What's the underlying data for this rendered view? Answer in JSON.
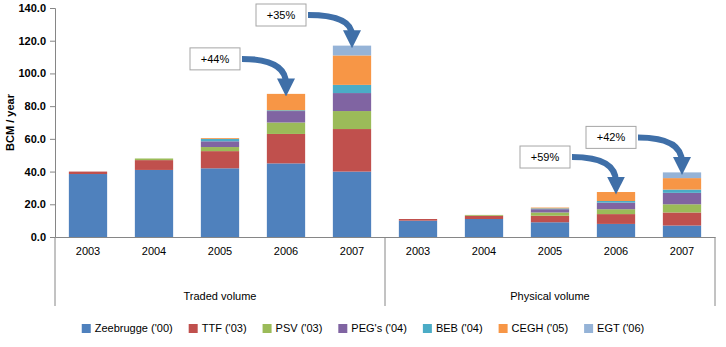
{
  "chart_data": {
    "type": "bar",
    "stacked": true,
    "grid": false,
    "legend": "bottom",
    "y_label": "BCM / year",
    "ylim": [
      0,
      140
    ],
    "yticks": [
      {
        "value": 0,
        "label": "0.0"
      },
      {
        "value": 20,
        "label": "20.0"
      },
      {
        "value": 40,
        "label": "40.0"
      },
      {
        "value": 60,
        "label": "60.0"
      },
      {
        "value": 80,
        "label": "80.0"
      },
      {
        "value": 100,
        "label": "100.0"
      },
      {
        "value": 120,
        "label": "120.0"
      },
      {
        "value": 140,
        "label": "140.0"
      }
    ],
    "groups": [
      "Traded volume",
      "Physical volume"
    ],
    "categories": [
      "2003",
      "2004",
      "2005",
      "2006",
      "2007",
      "2003",
      "2004",
      "2005",
      "2006",
      "2007"
    ],
    "series": [
      {
        "name": "Zeebrugge ('00)",
        "color": "#4f81bd",
        "values": [
          38.5,
          41,
          42,
          45,
          40,
          10,
          11,
          9,
          8,
          7
        ]
      },
      {
        "name": "TTF ('03)",
        "color": "#c0504d",
        "values": [
          1.5,
          6,
          10.5,
          18,
          26,
          1,
          2,
          4,
          6,
          8
        ]
      },
      {
        "name": "PSV ('03)",
        "color": "#9bbb59",
        "values": [
          0,
          1,
          2.5,
          7,
          11,
          0,
          0.5,
          2,
          3,
          5
        ]
      },
      {
        "name": "PEG's ('04)",
        "color": "#8064a2",
        "values": [
          0,
          0,
          3.5,
          7,
          11,
          0,
          0,
          2,
          4,
          7
        ]
      },
      {
        "name": "BEB ('04)",
        "color": "#4bacc6",
        "values": [
          0,
          0,
          1.5,
          0.5,
          5,
          0,
          0,
          0.5,
          1,
          2
        ]
      },
      {
        "name": "CEGH ('05)",
        "color": "#f79646",
        "values": [
          0,
          0,
          0.5,
          10,
          18,
          0,
          0,
          0.5,
          5.5,
          7
        ]
      },
      {
        "name": "EGT ('06)",
        "color": "#95b3d7",
        "values": [
          0,
          0,
          0,
          0,
          6,
          0,
          0,
          0,
          0,
          3.5
        ]
      }
    ],
    "annotations": [
      "+44%",
      "+35%",
      "+59%",
      "+42%"
    ]
  }
}
